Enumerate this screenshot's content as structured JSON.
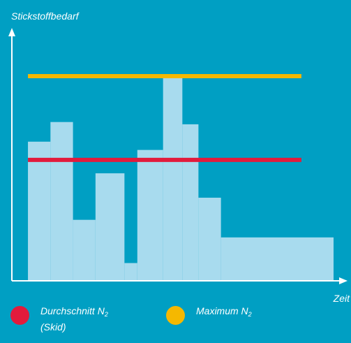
{
  "chart_data": {
    "type": "area",
    "ylabel": "Stickstoffbedarf",
    "xlabel": "Zeit",
    "xlim": [
      0,
      100
    ],
    "ylim": [
      0,
      100
    ],
    "steps": [
      {
        "x0": 5,
        "x1": 12,
        "value": 67.3
      },
      {
        "x0": 12,
        "x1": 19,
        "value": 76.8
      },
      {
        "x0": 19,
        "x1": 26,
        "value": 29.5
      },
      {
        "x0": 26,
        "x1": 35,
        "value": 52.0
      },
      {
        "x0": 35,
        "x1": 39,
        "value": 8.6
      },
      {
        "x0": 39,
        "x1": 47,
        "value": 63.3
      },
      {
        "x0": 47,
        "x1": 53,
        "value": 99.0
      },
      {
        "x0": 53,
        "x1": 58,
        "value": 75.7
      },
      {
        "x0": 58,
        "x1": 65,
        "value": 40.2
      },
      {
        "x0": 65,
        "x1": 100,
        "value": 21.0
      }
    ],
    "reference_lines": [
      {
        "name": "Maximum N2",
        "value": 99.0,
        "color": "#f5b800"
      },
      {
        "name": "Durchschnitt N2 (Skid)",
        "value": 58.5,
        "color": "#e21b3c"
      }
    ],
    "fill_color": "#a8dbee",
    "axis_color": "#ffffff",
    "grid": false
  },
  "legend": {
    "avg": {
      "label": "Durchschnitt N",
      "sub": "2",
      "label2": "(Skid)",
      "color": "#e21b3c"
    },
    "max": {
      "label": "Maximum N",
      "sub": "2",
      "color": "#f5b800"
    }
  }
}
